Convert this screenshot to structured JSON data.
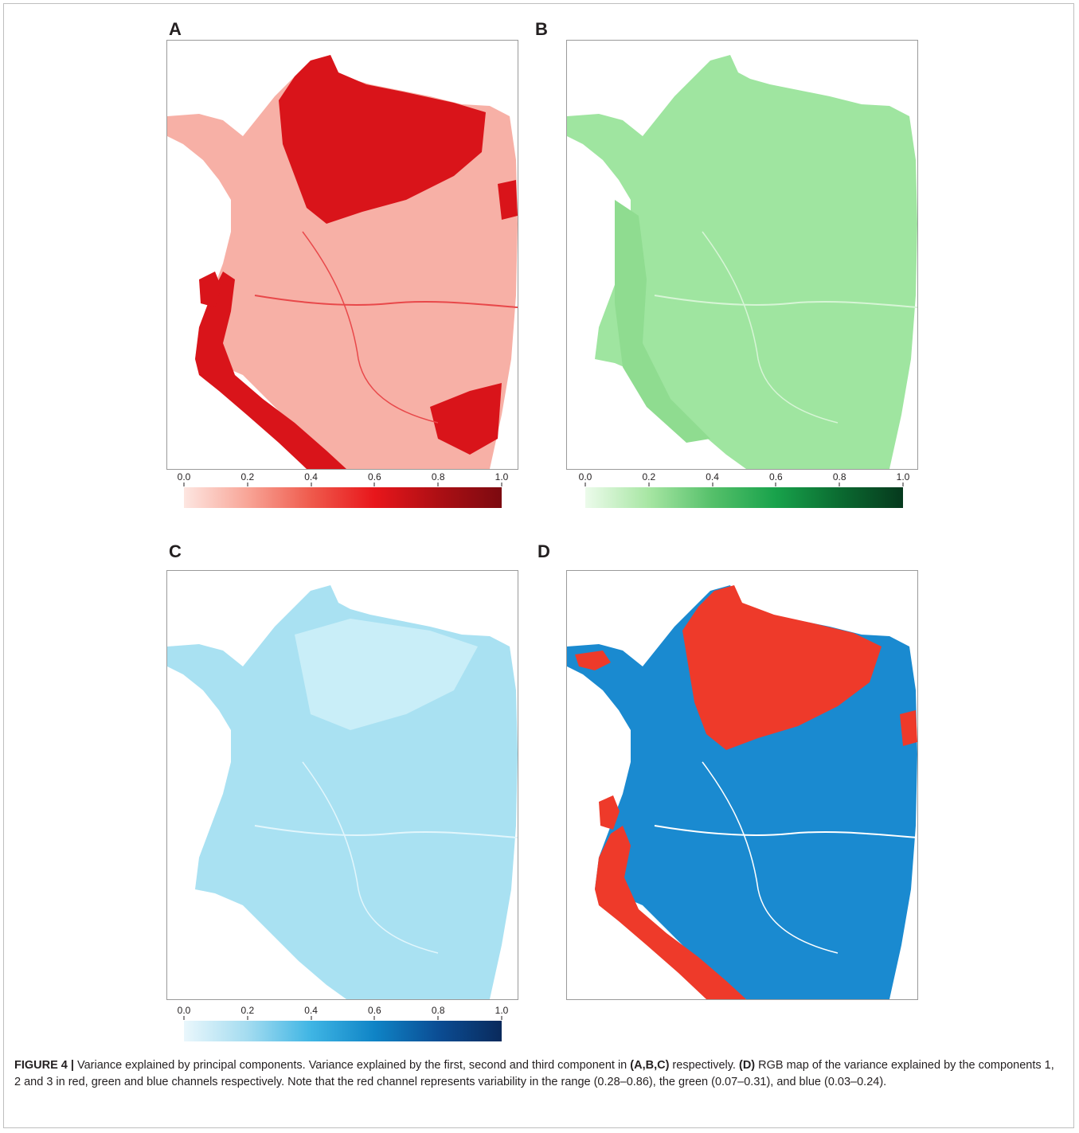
{
  "figure": {
    "label": "FIGURE 4 |",
    "caption_parts": [
      {
        "text": " Variance explained by principal components. Variance explained by the first, second and third component in ",
        "bold": false
      },
      {
        "text": "(A,B,C)",
        "bold": true
      },
      {
        "text": " respectively. ",
        "bold": false
      },
      {
        "text": "(D)",
        "bold": true
      },
      {
        "text": " RGB map of the variance explained by the components 1, 2 and 3 in red, green and blue channels respectively. Note that the red channel represents variability in the range (0.28–0.86), the green (0.07–0.31), and blue (0.03–0.24).",
        "bold": false
      }
    ]
  },
  "panels": [
    {
      "letter": "A",
      "base_color": "#f7b0a6",
      "accent_color": "#d9141a",
      "river_color": "#e8484a",
      "colorbar": {
        "ticks": [
          "0.0",
          "0.2",
          "0.4",
          "0.6",
          "0.8",
          "1.0"
        ],
        "stops": [
          "#fde6e1",
          "#f8a597",
          "#ef5a4c",
          "#e8161b",
          "#ad0f14",
          "#7c0a10"
        ]
      }
    },
    {
      "letter": "B",
      "base_color": "#9fe5a0",
      "accent_color": "#8fdc90",
      "river_color": "#d7f5d6",
      "colorbar": {
        "ticks": [
          "0.0",
          "0.2",
          "0.4",
          "0.6",
          "0.8",
          "1.0"
        ],
        "stops": [
          "#ecfbeb",
          "#a7e6a3",
          "#55c06a",
          "#18a24b",
          "#0b6b31",
          "#06391d"
        ]
      }
    },
    {
      "letter": "C",
      "base_color": "#a9e1f2",
      "accent_color": "#c9eef8",
      "river_color": "#e2f6fc",
      "colorbar": {
        "ticks": [
          "0.0",
          "0.2",
          "0.4",
          "0.6",
          "0.8",
          "1.0"
        ],
        "stops": [
          "#eaf7fc",
          "#a4dcf0",
          "#3fb5e4",
          "#0f84c6",
          "#0b4d94",
          "#0a2a5c"
        ]
      }
    },
    {
      "letter": "D",
      "base_color": "#1a8ad0",
      "accent_color": "#ee3a2a",
      "river_color": "#ffffff"
    }
  ]
}
